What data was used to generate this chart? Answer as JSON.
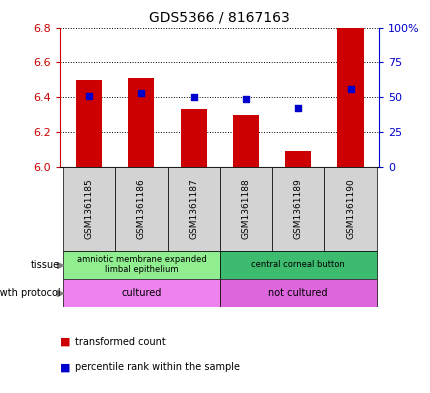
{
  "title": "GDS5366 / 8167163",
  "samples": [
    "GSM1361185",
    "GSM1361186",
    "GSM1361187",
    "GSM1361188",
    "GSM1361189",
    "GSM1361190"
  ],
  "red_values": [
    6.5,
    6.51,
    6.33,
    6.3,
    6.09,
    6.8
  ],
  "blue_values": [
    6.41,
    6.425,
    6.4,
    6.388,
    6.336,
    6.445
  ],
  "ylim_left": [
    6.0,
    6.8
  ],
  "ylim_right": [
    0,
    100
  ],
  "yticks_left": [
    6.0,
    6.2,
    6.4,
    6.6,
    6.8
  ],
  "yticks_right": [
    0,
    25,
    50,
    75,
    100
  ],
  "ytick_labels_right": [
    "0",
    "25",
    "50",
    "75",
    "100%"
  ],
  "tissue_groups": [
    {
      "label": "amniotic membrane expanded\nlimbal epithelium",
      "samples_idx": [
        0,
        1,
        2
      ],
      "color": "#90ee90"
    },
    {
      "label": "central corneal button",
      "samples_idx": [
        3,
        4,
        5
      ],
      "color": "#3dbb6e"
    }
  ],
  "growth_groups": [
    {
      "label": "cultured",
      "samples_idx": [
        0,
        1,
        2
      ],
      "color": "#ee82ee"
    },
    {
      "label": "not cultured",
      "samples_idx": [
        3,
        4,
        5
      ],
      "color": "#dd66dd"
    }
  ],
  "bar_color": "#cc0000",
  "dot_color": "#0000cc",
  "bar_width": 0.5,
  "background_color": "#ffffff",
  "label_color_left": "#cc0000",
  "label_color_right": "#0000cc",
  "sample_box_color": "#d3d3d3",
  "legend_items": [
    {
      "color": "#cc0000",
      "label": "transformed count"
    },
    {
      "color": "#0000cc",
      "label": "percentile rank within the sample"
    }
  ]
}
